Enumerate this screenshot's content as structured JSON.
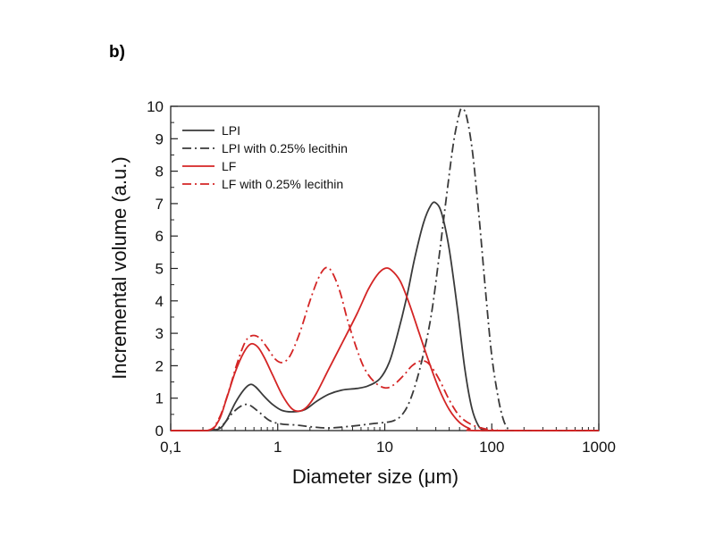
{
  "panel_label": "b)",
  "chart_data": {
    "type": "line",
    "title": "",
    "xlabel": "Diameter size (μm)",
    "ylabel": "Incremental volume (a.u.)",
    "xscale": "log",
    "xlim": [
      0.1,
      1000
    ],
    "ylim": [
      0,
      10
    ],
    "xticks": [
      0.1,
      1,
      10,
      100,
      1000
    ],
    "xtick_labels": [
      "0,1",
      "1",
      "10",
      "100",
      "1000"
    ],
    "yticks": [
      0,
      1,
      2,
      3,
      4,
      5,
      6,
      7,
      8,
      9,
      10
    ],
    "ytick_labels": [
      "0",
      "1",
      "2",
      "3",
      "4",
      "5",
      "6",
      "7",
      "8",
      "9",
      "10"
    ],
    "grid": false,
    "legend_position": "top-left",
    "series": [
      {
        "name": "LPI",
        "color": "#3a3a3a",
        "dash": "solid",
        "points": [
          [
            0.1,
            0
          ],
          [
            0.2,
            0
          ],
          [
            0.28,
            0.05
          ],
          [
            0.33,
            0.3
          ],
          [
            0.4,
            0.85
          ],
          [
            0.48,
            1.25
          ],
          [
            0.55,
            1.42
          ],
          [
            0.62,
            1.35
          ],
          [
            0.75,
            1.05
          ],
          [
            0.9,
            0.8
          ],
          [
            1.1,
            0.62
          ],
          [
            1.4,
            0.58
          ],
          [
            1.8,
            0.65
          ],
          [
            2.3,
            0.9
          ],
          [
            3,
            1.12
          ],
          [
            4,
            1.25
          ],
          [
            5.5,
            1.3
          ],
          [
            7,
            1.38
          ],
          [
            9,
            1.6
          ],
          [
            11,
            2.1
          ],
          [
            13,
            2.9
          ],
          [
            16,
            4.1
          ],
          [
            19,
            5.3
          ],
          [
            23,
            6.4
          ],
          [
            27,
            6.95
          ],
          [
            30,
            7.02
          ],
          [
            34,
            6.7
          ],
          [
            40,
            5.6
          ],
          [
            48,
            3.7
          ],
          [
            56,
            1.9
          ],
          [
            65,
            0.7
          ],
          [
            75,
            0.15
          ],
          [
            85,
            0.02
          ],
          [
            100,
            0
          ],
          [
            1000,
            0
          ]
        ]
      },
      {
        "name": "LPI with 0.25% lecithin",
        "color": "#3a3a3a",
        "dash": "dashdot",
        "points": [
          [
            0.1,
            0
          ],
          [
            0.22,
            0
          ],
          [
            0.3,
            0.15
          ],
          [
            0.38,
            0.55
          ],
          [
            0.47,
            0.78
          ],
          [
            0.55,
            0.78
          ],
          [
            0.68,
            0.55
          ],
          [
            0.85,
            0.3
          ],
          [
            1.1,
            0.2
          ],
          [
            1.5,
            0.17
          ],
          [
            2,
            0.12
          ],
          [
            3,
            0.08
          ],
          [
            5,
            0.14
          ],
          [
            8,
            0.22
          ],
          [
            12,
            0.3
          ],
          [
            15,
            0.55
          ],
          [
            18,
            1.1
          ],
          [
            22,
            2.1
          ],
          [
            27,
            3.5
          ],
          [
            32,
            5.3
          ],
          [
            38,
            7.3
          ],
          [
            44,
            8.9
          ],
          [
            50,
            9.8
          ],
          [
            53,
            9.92
          ],
          [
            58,
            9.7
          ],
          [
            66,
            8.6
          ],
          [
            76,
            6.6
          ],
          [
            88,
            4.2
          ],
          [
            100,
            2.3
          ],
          [
            115,
            1.0
          ],
          [
            128,
            0.35
          ],
          [
            140,
            0.08
          ],
          [
            155,
            0
          ],
          [
            1000,
            0
          ]
        ]
      },
      {
        "name": "LF",
        "color": "#d42525",
        "dash": "solid",
        "points": [
          [
            0.1,
            0
          ],
          [
            0.22,
            0
          ],
          [
            0.28,
            0.3
          ],
          [
            0.33,
            0.95
          ],
          [
            0.4,
            1.8
          ],
          [
            0.48,
            2.4
          ],
          [
            0.56,
            2.67
          ],
          [
            0.65,
            2.58
          ],
          [
            0.75,
            2.25
          ],
          [
            0.9,
            1.7
          ],
          [
            1.1,
            1.1
          ],
          [
            1.35,
            0.68
          ],
          [
            1.6,
            0.6
          ],
          [
            1.9,
            0.75
          ],
          [
            2.3,
            1.15
          ],
          [
            3,
            1.9
          ],
          [
            4,
            2.7
          ],
          [
            5.5,
            3.6
          ],
          [
            7,
            4.35
          ],
          [
            8.5,
            4.8
          ],
          [
            10,
            5.0
          ],
          [
            11.5,
            4.95
          ],
          [
            14,
            4.6
          ],
          [
            17,
            3.9
          ],
          [
            21,
            3.0
          ],
          [
            26,
            2.1
          ],
          [
            32,
            1.3
          ],
          [
            40,
            0.65
          ],
          [
            50,
            0.25
          ],
          [
            62,
            0.06
          ],
          [
            75,
            0
          ],
          [
            1000,
            0
          ]
        ]
      },
      {
        "name": "LF with 0.25% lecithin",
        "color": "#d42525",
        "dash": "dashdot",
        "points": [
          [
            0.1,
            0
          ],
          [
            0.22,
            0
          ],
          [
            0.28,
            0.35
          ],
          [
            0.34,
            1.1
          ],
          [
            0.42,
            2.1
          ],
          [
            0.5,
            2.75
          ],
          [
            0.58,
            2.93
          ],
          [
            0.68,
            2.85
          ],
          [
            0.8,
            2.55
          ],
          [
            0.95,
            2.2
          ],
          [
            1.1,
            2.1
          ],
          [
            1.3,
            2.3
          ],
          [
            1.6,
            3.0
          ],
          [
            2,
            4.0
          ],
          [
            2.4,
            4.7
          ],
          [
            2.8,
            5.02
          ],
          [
            3.2,
            4.9
          ],
          [
            3.8,
            4.3
          ],
          [
            4.5,
            3.4
          ],
          [
            5.5,
            2.5
          ],
          [
            6.5,
            1.9
          ],
          [
            8,
            1.5
          ],
          [
            10,
            1.32
          ],
          [
            12,
            1.4
          ],
          [
            15,
            1.7
          ],
          [
            18,
            2.0
          ],
          [
            22,
            2.15
          ],
          [
            26,
            2.05
          ],
          [
            32,
            1.6
          ],
          [
            40,
            0.95
          ],
          [
            50,
            0.45
          ],
          [
            65,
            0.18
          ],
          [
            85,
            0.06
          ],
          [
            110,
            0.02
          ],
          [
            140,
            0
          ],
          [
            1000,
            0
          ]
        ]
      }
    ]
  }
}
